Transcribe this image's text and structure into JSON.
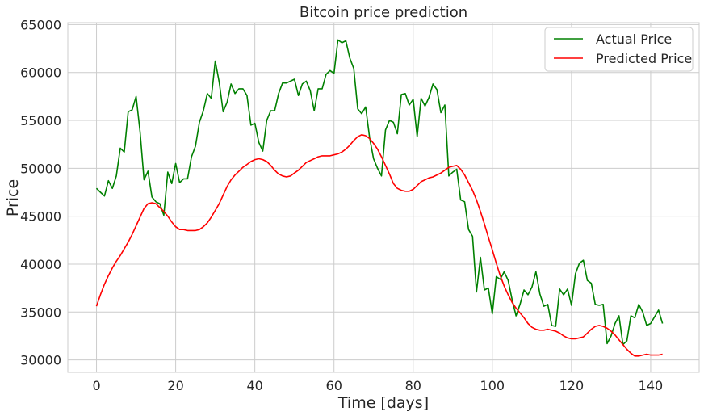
{
  "chart_data": {
    "type": "line",
    "title": "Bitcoin price prediction",
    "xlabel": "Time [days]",
    "ylabel": "Price",
    "xlim": [
      -7.25,
      152.25
    ],
    "ylim": [
      28700,
      65200
    ],
    "xticks": [
      0,
      20,
      40,
      60,
      80,
      100,
      120,
      140
    ],
    "yticks": [
      30000,
      35000,
      40000,
      45000,
      50000,
      55000,
      60000,
      65000
    ],
    "xtick_labels": [
      "0",
      "20",
      "40",
      "60",
      "80",
      "100",
      "120",
      "140"
    ],
    "ytick_labels": [
      "30000",
      "35000",
      "40000",
      "45000",
      "50000",
      "55000",
      "60000",
      "65000"
    ],
    "grid": true,
    "legend_position": "top-right",
    "series": [
      {
        "name": "Actual Price",
        "color": "#008000",
        "values": [
          47900,
          47500,
          47100,
          48700,
          47900,
          49200,
          52100,
          51700,
          55900,
          56100,
          57500,
          53800,
          48800,
          49700,
          47000,
          46500,
          46300,
          45100,
          49600,
          48400,
          50500,
          48500,
          48900,
          48900,
          51200,
          52300,
          54800,
          56000,
          57800,
          57300,
          61200,
          59000,
          55900,
          56900,
          58800,
          57800,
          58300,
          58300,
          57600,
          54500,
          54700,
          52700,
          51800,
          55000,
          56000,
          56000,
          57800,
          58900,
          58900,
          59100,
          59300,
          57600,
          58800,
          59100,
          58100,
          56000,
          58300,
          58300,
          59800,
          60200,
          59900,
          63400,
          63100,
          63300,
          61500,
          60400,
          56200,
          55700,
          56400,
          53200,
          51000,
          50000,
          49200,
          54000,
          55000,
          54800,
          53600,
          57700,
          57800,
          56600,
          57200,
          53300,
          57300,
          56500,
          57400,
          58800,
          58200,
          55800,
          56600,
          49200,
          49600,
          49900,
          46700,
          46500,
          43600,
          42900,
          37100,
          40700,
          37300,
          37500,
          34800,
          38700,
          38400,
          39200,
          38300,
          36300,
          34600,
          35800,
          37300,
          36800,
          37600,
          39200,
          36900,
          35600,
          35800,
          33600,
          33500,
          37400,
          36800,
          37400,
          35700,
          39000,
          40100,
          40400,
          38300,
          38000,
          35800,
          35700,
          35800,
          31700,
          32500,
          33800,
          34600,
          31600,
          32000,
          34600,
          34400,
          35800,
          35000,
          33600,
          33800,
          34500,
          35200,
          33800
        ]
      },
      {
        "name": "Predicted Price",
        "color": "#ff0000",
        "values": [
          35600,
          36800,
          37900,
          38800,
          39600,
          40300,
          40900,
          41600,
          42300,
          43100,
          44000,
          44900,
          45800,
          46300,
          46400,
          46300,
          45900,
          45500,
          45000,
          44400,
          43900,
          43600,
          43600,
          43500,
          43500,
          43500,
          43600,
          43900,
          44300,
          44900,
          45600,
          46300,
          47200,
          48100,
          48800,
          49300,
          49700,
          50100,
          50400,
          50700,
          50900,
          51000,
          50900,
          50700,
          50300,
          49800,
          49400,
          49200,
          49100,
          49200,
          49500,
          49800,
          50200,
          50600,
          50800,
          51000,
          51200,
          51300,
          51300,
          51300,
          51400,
          51500,
          51700,
          52000,
          52400,
          52900,
          53300,
          53500,
          53400,
          53100,
          52600,
          52000,
          51200,
          50300,
          49400,
          48400,
          47900,
          47700,
          47600,
          47600,
          47800,
          48200,
          48600,
          48800,
          49000,
          49100,
          49300,
          49500,
          49800,
          50100,
          50200,
          50300,
          49900,
          49300,
          48500,
          47700,
          46700,
          45500,
          44200,
          42800,
          41500,
          40100,
          38800,
          37700,
          36800,
          36000,
          35400,
          34900,
          34400,
          33800,
          33400,
          33200,
          33100,
          33100,
          33200,
          33100,
          33000,
          32800,
          32500,
          32300,
          32200,
          32200,
          32300,
          32400,
          32800,
          33200,
          33500,
          33600,
          33500,
          33300,
          33000,
          32600,
          32100,
          31600,
          31100,
          30700,
          30400,
          30400,
          30500,
          30600,
          30500,
          30500,
          30500,
          30600
        ]
      }
    ]
  }
}
